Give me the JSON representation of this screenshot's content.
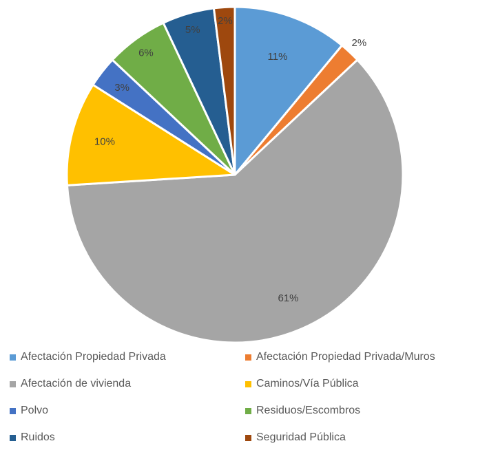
{
  "chart_data": {
    "type": "pie",
    "title": "",
    "categories": [
      "Afectación Propiedad Privada",
      "Afectación Propiedad Privada/Muros",
      "Afectación de vivienda",
      "Caminos/Vía Pública",
      "Polvo",
      "Residuos/Escombros",
      "Ruidos",
      "Seguridad Pública"
    ],
    "values": [
      11,
      2,
      61,
      10,
      3,
      6,
      5,
      2
    ],
    "labels": [
      "11%",
      "2%",
      "61%",
      "10%",
      "3%",
      "6%",
      "5%",
      "2%"
    ],
    "colors": [
      "#5b9bd5",
      "#ed7d31",
      "#a5a5a5",
      "#ffc000",
      "#4472c4",
      "#70ad47",
      "#255e91",
      "#9e480e"
    ],
    "legend_position": "bottom"
  }
}
